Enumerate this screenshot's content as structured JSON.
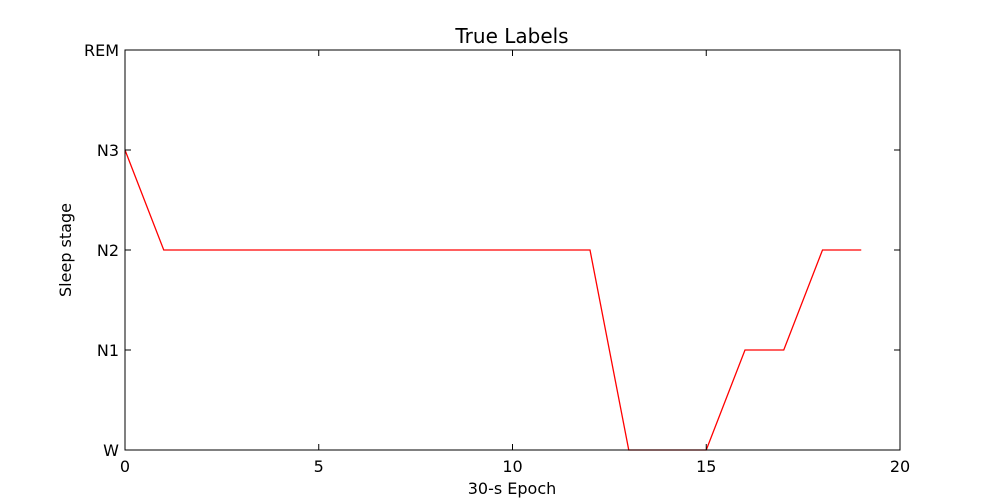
{
  "chart_data": {
    "type": "line",
    "title": "True Labels",
    "xlabel": "30-s Epoch",
    "ylabel": "Sleep stage",
    "xlim": [
      0,
      20
    ],
    "ylim": [
      0,
      4
    ],
    "x_ticks": [
      {
        "value": 0,
        "label": "0"
      },
      {
        "value": 5,
        "label": "5"
      },
      {
        "value": 10,
        "label": "10"
      },
      {
        "value": 15,
        "label": "15"
      },
      {
        "value": 20,
        "label": "20"
      }
    ],
    "y_ticks": [
      {
        "value": 0,
        "label": "W"
      },
      {
        "value": 1,
        "label": "N1"
      },
      {
        "value": 2,
        "label": "N2"
      },
      {
        "value": 3,
        "label": "N3"
      },
      {
        "value": 4,
        "label": "REM"
      }
    ],
    "grid": false,
    "series": [
      {
        "color": "#ff0000",
        "x": [
          0,
          1,
          2,
          3,
          4,
          5,
          6,
          7,
          8,
          9,
          10,
          11,
          12,
          13,
          14,
          15,
          16,
          17,
          18,
          19
        ],
        "y": [
          3,
          2,
          2,
          2,
          2,
          2,
          2,
          2,
          2,
          2,
          2,
          2,
          2,
          0,
          0,
          0,
          1,
          1,
          2,
          2
        ]
      }
    ]
  }
}
